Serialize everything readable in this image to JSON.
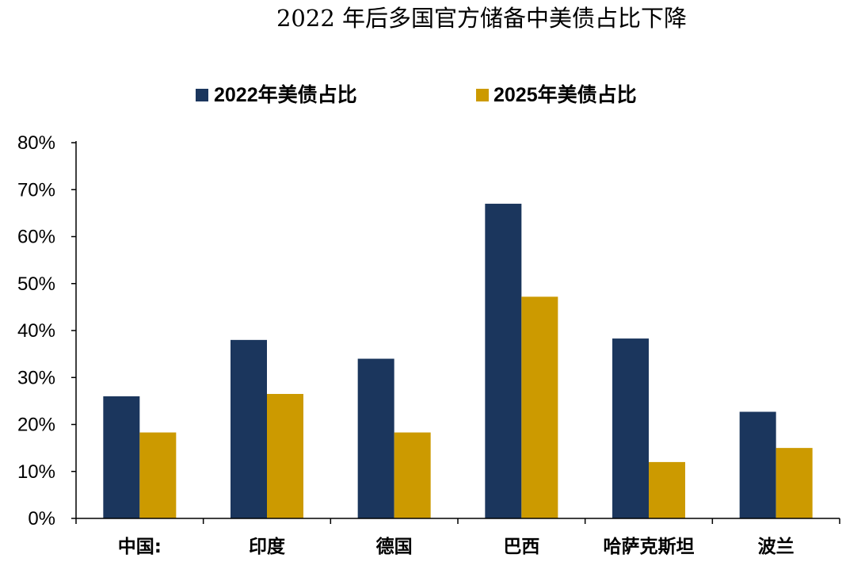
{
  "chart_data": {
    "type": "bar",
    "title": "2022 年后多国官方储备中美债占比下降",
    "categories": [
      "中国:",
      "印度",
      "德国",
      "巴西",
      "哈萨克斯坦",
      "波兰"
    ],
    "series": [
      {
        "name": "2022年美债占比",
        "color": "#1b365d",
        "values": [
          26,
          38,
          34,
          67,
          38.3,
          22.7
        ]
      },
      {
        "name": "2025年美债占比",
        "color": "#cc9a00",
        "values": [
          18.3,
          26.5,
          18.3,
          47.2,
          12,
          15
        ]
      }
    ],
    "ylim": [
      0,
      80
    ],
    "yticks": [
      0,
      10,
      20,
      30,
      40,
      50,
      60,
      70,
      80
    ],
    "ytick_suffix": "%",
    "xlabel": "",
    "ylabel": "",
    "grid": false,
    "legend_position": "top"
  }
}
